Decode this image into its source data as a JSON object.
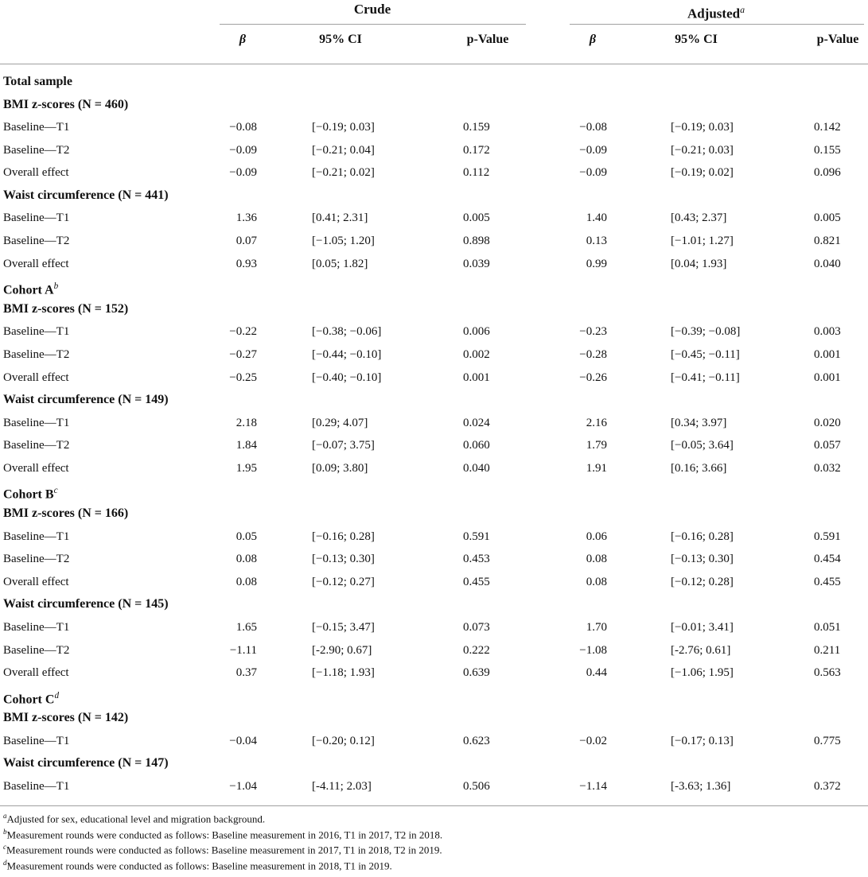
{
  "header": {
    "groups": [
      {
        "label": "Crude"
      },
      {
        "label": "Adjusted",
        "sup": "a"
      }
    ],
    "columns": [
      "β",
      "95% CI",
      "p-Value",
      "β",
      "95% CI",
      "p-Value"
    ]
  },
  "sections": [
    {
      "title": "Total sample",
      "measures": [
        {
          "title": "BMI z-scores (N = 460)",
          "rows": [
            [
              "Baseline—T1",
              "−0.08",
              "[−0.19; 0.03]",
              "0.159",
              "−0.08",
              "[−0.19; 0.03]",
              "0.142"
            ],
            [
              "Baseline—T2",
              "−0.09",
              "[−0.21; 0.04]",
              "0.172",
              "−0.09",
              "[−0.21; 0.03]",
              "0.155"
            ],
            [
              "Overall effect",
              "−0.09",
              "[−0.21; 0.02]",
              "0.112",
              "−0.09",
              "[−0.19; 0.02]",
              "0.096"
            ]
          ]
        },
        {
          "title": "Waist circumference (N = 441)",
          "rows": [
            [
              "Baseline—T1",
              "1.36",
              "[0.41; 2.31]",
              "0.005",
              "1.40",
              "[0.43; 2.37]",
              "0.005"
            ],
            [
              "Baseline—T2",
              "0.07",
              "[−1.05; 1.20]",
              "0.898",
              "0.13",
              "[−1.01; 1.27]",
              "0.821"
            ],
            [
              "Overall effect",
              "0.93",
              "[0.05; 1.82]",
              "0.039",
              "0.99",
              "[0.04; 1.93]",
              "0.040"
            ]
          ]
        }
      ]
    },
    {
      "title": "Cohort A",
      "sup": "b",
      "measures": [
        {
          "title": "BMI z-scores (N = 152)",
          "rows": [
            [
              "Baseline—T1",
              "−0.22",
              "[−0.38; −0.06]",
              "0.006",
              "−0.23",
              "[−0.39; −0.08]",
              "0.003"
            ],
            [
              "Baseline—T2",
              "−0.27",
              "[−0.44; −0.10]",
              "0.002",
              "−0.28",
              "[−0.45; −0.11]",
              "0.001"
            ],
            [
              "Overall effect",
              "−0.25",
              "[−0.40; −0.10]",
              "0.001",
              "−0.26",
              "[−0.41; −0.11]",
              "0.001"
            ]
          ]
        },
        {
          "title": "Waist circumference (N = 149)",
          "rows": [
            [
              "Baseline—T1",
              "2.18",
              "[0.29; 4.07]",
              "0.024",
              "2.16",
              "[0.34; 3.97]",
              "0.020"
            ],
            [
              "Baseline—T2",
              "1.84",
              "[−0.07; 3.75]",
              "0.060",
              "1.79",
              "[−0.05; 3.64]",
              "0.057"
            ],
            [
              "Overall effect",
              "1.95",
              "[0.09; 3.80]",
              "0.040",
              "1.91",
              "[0.16; 3.66]",
              "0.032"
            ]
          ]
        }
      ]
    },
    {
      "title": "Cohort B",
      "sup": "c",
      "measures": [
        {
          "title": "BMI z-scores (N = 166)",
          "rows": [
            [
              "Baseline—T1",
              "0.05",
              "[−0.16; 0.28]",
              "0.591",
              "0.06",
              "[−0.16; 0.28]",
              "0.591"
            ],
            [
              "Baseline—T2",
              "0.08",
              "[−0.13; 0.30]",
              "0.453",
              "0.08",
              "[−0.13; 0.30]",
              "0.454"
            ],
            [
              "Overall effect",
              "0.08",
              "[−0.12; 0.27]",
              "0.455",
              "0.08",
              "[−0.12; 0.28]",
              "0.455"
            ]
          ]
        },
        {
          "title": "Waist circumference (N = 145)",
          "rows": [
            [
              "Baseline—T1",
              "1.65",
              "[−0.15; 3.47]",
              "0.073",
              "1.70",
              "[−0.01; 3.41]",
              "0.051"
            ],
            [
              "Baseline—T2",
              "−1.11",
              "[-2.90; 0.67]",
              "0.222",
              "−1.08",
              "[-2.76; 0.61]",
              "0.211"
            ],
            [
              "Overall effect",
              "0.37",
              "[−1.18; 1.93]",
              "0.639",
              "0.44",
              "[−1.06; 1.95]",
              "0.563"
            ]
          ]
        }
      ]
    },
    {
      "title": "Cohort C",
      "sup": "d",
      "measures": [
        {
          "title": "BMI z-scores (N = 142)",
          "rows": [
            [
              "Baseline—T1",
              "−0.04",
              "[−0.20; 0.12]",
              "0.623",
              "−0.02",
              "[−0.17; 0.13]",
              "0.775"
            ]
          ]
        },
        {
          "title": "Waist circumference (N = 147)",
          "rows": [
            [
              "Baseline—T1",
              "−1.04",
              "[-4.11; 2.03]",
              "0.506",
              "−1.14",
              "[-3.63; 1.36]",
              "0.372"
            ]
          ]
        }
      ]
    }
  ],
  "footnotes": [
    {
      "mark": "a",
      "text": "Adjusted for sex, educational level and migration background."
    },
    {
      "mark": "b",
      "text": "Measurement rounds were conducted as follows: Baseline measurement in 2016, T1 in 2017, T2 in 2018."
    },
    {
      "mark": "c",
      "text": "Measurement rounds were conducted as follows: Baseline measurement in 2017, T1 in 2018, T2 in 2019."
    },
    {
      "mark": "d",
      "text": "Measurement rounds were conducted as follows: Baseline measurement in 2018, T1 in 2019."
    }
  ]
}
